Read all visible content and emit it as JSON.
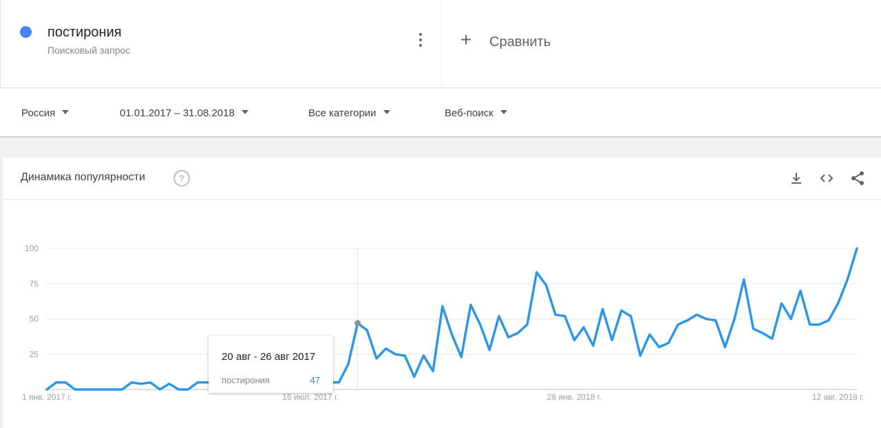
{
  "term": {
    "name": "постирония",
    "type": "Поисковый запрос",
    "dot_color": "#4285f4"
  },
  "compare": {
    "label": "Сравнить",
    "plus": "+"
  },
  "filters": [
    {
      "label": "Россия"
    },
    {
      "label": "01.01.2017 – 31.08.2018"
    },
    {
      "label": "Все категории"
    },
    {
      "label": "Веб-поиск"
    }
  ],
  "panel": {
    "title": "Динамика популярности",
    "help": "?",
    "icons": [
      "download-icon",
      "embed-code-icon",
      "share-icon"
    ]
  },
  "tooltip": {
    "date": "20 авг - 26 авг 2017",
    "series": "постирония",
    "value": "47"
  },
  "chart_data": {
    "type": "line",
    "title": "",
    "xlabel": "",
    "ylabel": "",
    "ylim": [
      0,
      100
    ],
    "yticks": [
      25,
      50,
      75,
      100
    ],
    "grid": true,
    "line_color": "#2d96e6",
    "x_tick_labels": [
      {
        "label": "1 янв. 2017 г.",
        "index": 0
      },
      {
        "label": "16 июл. 2017 г.",
        "index": 28
      },
      {
        "label": "28 янв. 2018 г.",
        "index": 56
      },
      {
        "label": "12 авг. 2018 г.",
        "index": 84
      }
    ],
    "highlight_index": 33,
    "series": [
      {
        "name": "постирония",
        "values": [
          0,
          5,
          5,
          0,
          0,
          0,
          0,
          0,
          0,
          5,
          4,
          5,
          0,
          4,
          0,
          0,
          5,
          5,
          5,
          5,
          5,
          5,
          5,
          0,
          5,
          10,
          5,
          10,
          15,
          10,
          5,
          5,
          18,
          47,
          42,
          22,
          29,
          25,
          24,
          9,
          24,
          13,
          59,
          39,
          23,
          60,
          46,
          28,
          52,
          37,
          40,
          46,
          83,
          74,
          53,
          52,
          35,
          44,
          31,
          57,
          35,
          56,
          52,
          24,
          39,
          30,
          33,
          46,
          49,
          53,
          50,
          49,
          30,
          50,
          78,
          43,
          40,
          36,
          61,
          50,
          70,
          46,
          46,
          49,
          61,
          78,
          100
        ]
      }
    ]
  }
}
